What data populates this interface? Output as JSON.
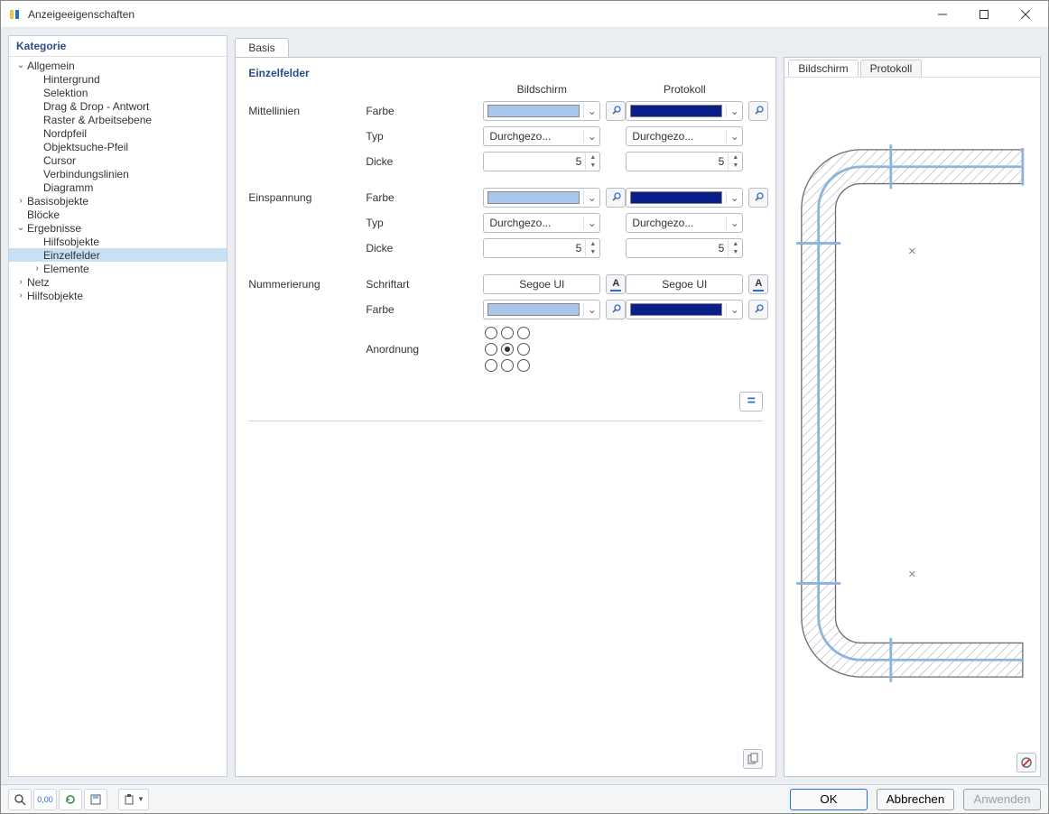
{
  "window": {
    "title": "Anzeigeeigenschaften"
  },
  "colors": {
    "screen_swatch": "#a8c7ea",
    "protocol_swatch": "#0a1e8a",
    "accent": "#2a6cd4",
    "panel_bg": "#eaedf2"
  },
  "sidebar": {
    "header": "Kategorie",
    "tree": [
      {
        "label": "Allgemein",
        "depth": 0,
        "expand": "open"
      },
      {
        "label": "Hintergrund",
        "depth": 1,
        "expand": "none"
      },
      {
        "label": "Selektion",
        "depth": 1,
        "expand": "none"
      },
      {
        "label": "Drag & Drop - Antwort",
        "depth": 1,
        "expand": "none"
      },
      {
        "label": "Raster & Arbeitsebene",
        "depth": 1,
        "expand": "none"
      },
      {
        "label": "Nordpfeil",
        "depth": 1,
        "expand": "none"
      },
      {
        "label": "Objektsuche-Pfeil",
        "depth": 1,
        "expand": "none"
      },
      {
        "label": "Cursor",
        "depth": 1,
        "expand": "none"
      },
      {
        "label": "Verbindungslinien",
        "depth": 1,
        "expand": "none"
      },
      {
        "label": "Diagramm",
        "depth": 1,
        "expand": "none"
      },
      {
        "label": "Basisobjekte",
        "depth": 0,
        "expand": "closed"
      },
      {
        "label": "Blöcke",
        "depth": 0,
        "expand": "none"
      },
      {
        "label": "Ergebnisse",
        "depth": 0,
        "expand": "open"
      },
      {
        "label": "Hilfsobjekte",
        "depth": 1,
        "expand": "none"
      },
      {
        "label": "Einzelfelder",
        "depth": 1,
        "expand": "none",
        "selected": true
      },
      {
        "label": "Elemente",
        "depth": 1,
        "expand": "closed"
      },
      {
        "label": "Netz",
        "depth": 0,
        "expand": "closed"
      },
      {
        "label": "Hilfsobjekte",
        "depth": 0,
        "expand": "closed"
      }
    ]
  },
  "main_tab": {
    "label": "Basis"
  },
  "props": {
    "section": "Einzelfelder",
    "col_screen": "Bildschirm",
    "col_protocol": "Protokoll",
    "groups": [
      {
        "title": "Mittellinien",
        "rows": [
          {
            "label": "Farbe",
            "kind": "color",
            "screen": "#a8c7ea",
            "protocol": "#0a1e8a",
            "side_btn": true
          },
          {
            "label": "Typ",
            "kind": "combo",
            "screen": "Durchgezo...",
            "protocol": "Durchgezo..."
          },
          {
            "label": "Dicke",
            "kind": "spin",
            "screen": "5",
            "protocol": "5"
          }
        ]
      },
      {
        "title": "Einspannung",
        "rows": [
          {
            "label": "Farbe",
            "kind": "color",
            "screen": "#a8c7ea",
            "protocol": "#0a1e8a",
            "side_btn": true
          },
          {
            "label": "Typ",
            "kind": "combo",
            "screen": "Durchgezo...",
            "protocol": "Durchgezo..."
          },
          {
            "label": "Dicke",
            "kind": "spin",
            "screen": "5",
            "protocol": "5"
          }
        ]
      },
      {
        "title": "Nummerierung",
        "rows": [
          {
            "label": "Schriftart",
            "kind": "font",
            "screen": "Segoe UI",
            "protocol": "Segoe UI",
            "font_bar_screen": "#2a6cd4",
            "font_bar_protocol": "#2a6cd4"
          },
          {
            "label": "Farbe",
            "kind": "color",
            "screen": "#a8c7ea",
            "protocol": "#0a1e8a",
            "side_btn": true
          },
          {
            "label": "Anordnung",
            "kind": "radio3x3",
            "selected_index": 4
          }
        ]
      }
    ],
    "equal_btn_glyph": "="
  },
  "preview": {
    "tabs": [
      "Bildschirm",
      "Protokoll"
    ],
    "active_tab": 0,
    "shape": {
      "centerline_color": "#8db4dc",
      "outline_color": "#6b6f78",
      "hatch_color": "#a8acb4",
      "bg": "#ffffff",
      "marker_glyph": "×"
    }
  },
  "footer": {
    "ok": "OK",
    "cancel": "Abbrechen",
    "apply": "Anwenden"
  }
}
